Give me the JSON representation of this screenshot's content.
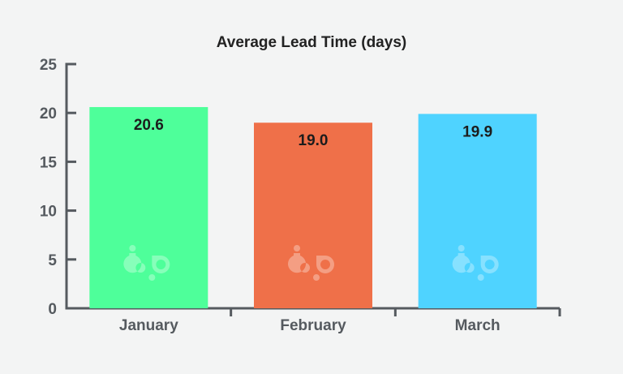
{
  "chart_data": {
    "type": "bar",
    "title": "Average Lead Time (days)",
    "xlabel": "",
    "ylabel": "",
    "categories": [
      "January",
      "February",
      "March"
    ],
    "values": [
      20.6,
      19.0,
      19.9
    ],
    "data_labels": [
      "20.6",
      "19.0",
      "19.9"
    ],
    "bar_colors": [
      "#4eff9a",
      "#ef7049",
      "#4fd3ff"
    ],
    "ylim": [
      0,
      25
    ],
    "yticks": [
      0,
      5,
      10,
      15,
      20,
      25
    ],
    "ytick_labels": [
      "0",
      "5",
      "10",
      "15",
      "20",
      "25"
    ],
    "grid": false,
    "legend": "none",
    "watermark_icon": "bp-logo-icon"
  },
  "colors": {
    "background": "#f3f4f4",
    "axis": "#555a5f",
    "title": "#222222",
    "value_label": "#1c1c1c"
  }
}
